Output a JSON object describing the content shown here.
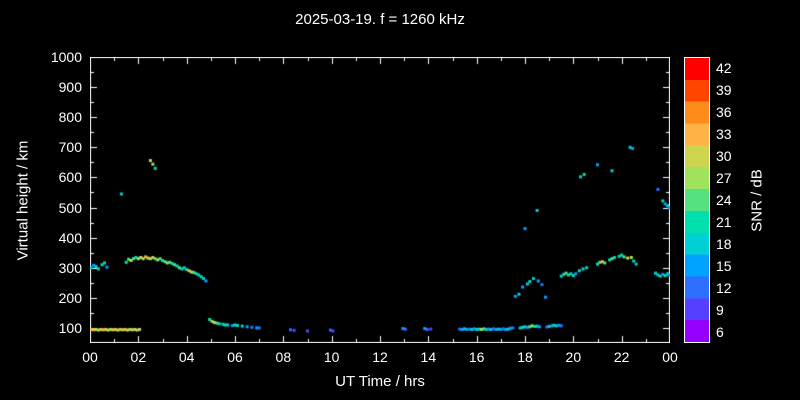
{
  "chart_data": {
    "type": "scatter",
    "title": "2025-03-19. f = 1260 kHz",
    "xlabel": "UT Time / hrs",
    "ylabel": "Virtual height / km",
    "colorbar_label": "SNR / dB",
    "background": "#000000",
    "frame_color": "#ffffff",
    "xlim": [
      0,
      24
    ],
    "ylim": [
      50,
      1000
    ],
    "xticks": {
      "values": [
        0,
        2,
        4,
        6,
        8,
        10,
        12,
        14,
        16,
        18,
        20,
        22,
        24
      ],
      "labels": [
        "00",
        "02",
        "04",
        "06",
        "08",
        "10",
        "12",
        "14",
        "16",
        "18",
        "20",
        "22",
        "00"
      ]
    },
    "yticks": [
      100,
      200,
      300,
      400,
      500,
      600,
      700,
      800,
      900,
      1000
    ],
    "colorbar": {
      "values": [
        6,
        9,
        12,
        15,
        18,
        21,
        24,
        27,
        30,
        33,
        36,
        39,
        42
      ],
      "colors": [
        "#9400ff",
        "#5540ff",
        "#2f6fff",
        "#00a2ff",
        "#00cfd6",
        "#00dfae",
        "#55e17f",
        "#9fe35c",
        "#cfd44e",
        "#ffb347",
        "#ff8c1a",
        "#ff4500",
        "#ff0000"
      ]
    },
    "points": [
      [
        0.05,
        95,
        30
      ],
      [
        0.15,
        94,
        33
      ],
      [
        0.25,
        95,
        30
      ],
      [
        0.35,
        93,
        27
      ],
      [
        0.45,
        95,
        30
      ],
      [
        0.55,
        94,
        33
      ],
      [
        0.65,
        95,
        30
      ],
      [
        0.75,
        93,
        30
      ],
      [
        0.85,
        95,
        27
      ],
      [
        0.95,
        94,
        30
      ],
      [
        1.05,
        95,
        33
      ],
      [
        1.15,
        93,
        30
      ],
      [
        1.25,
        95,
        27
      ],
      [
        1.35,
        94,
        30
      ],
      [
        1.45,
        95,
        33
      ],
      [
        1.55,
        93,
        30
      ],
      [
        1.65,
        95,
        27
      ],
      [
        1.75,
        94,
        30
      ],
      [
        1.85,
        95,
        30
      ],
      [
        1.95,
        93,
        27
      ],
      [
        2.05,
        95,
        30
      ],
      [
        0.05,
        300,
        18
      ],
      [
        0.15,
        308,
        15
      ],
      [
        0.25,
        304,
        18
      ],
      [
        0.35,
        296,
        18
      ],
      [
        0.5,
        310,
        21
      ],
      [
        0.6,
        316,
        18
      ],
      [
        0.7,
        302,
        15
      ],
      [
        1.3,
        545,
        18
      ],
      [
        1.5,
        318,
        21
      ],
      [
        1.6,
        328,
        24
      ],
      [
        1.7,
        324,
        27
      ],
      [
        1.8,
        330,
        24
      ],
      [
        1.9,
        334,
        21
      ],
      [
        2.0,
        330,
        27
      ],
      [
        2.1,
        334,
        30
      ],
      [
        2.2,
        330,
        27
      ],
      [
        2.3,
        336,
        33
      ],
      [
        2.4,
        332,
        30
      ],
      [
        2.5,
        330,
        27
      ],
      [
        2.6,
        334,
        30
      ],
      [
        2.7,
        330,
        24
      ],
      [
        2.8,
        326,
        27
      ],
      [
        2.9,
        330,
        24
      ],
      [
        3.0,
        324,
        21
      ],
      [
        3.1,
        320,
        24
      ],
      [
        3.2,
        316,
        27
      ],
      [
        3.3,
        318,
        24
      ],
      [
        3.4,
        314,
        21
      ],
      [
        3.5,
        310,
        24
      ],
      [
        3.6,
        306,
        21
      ],
      [
        3.7,
        300,
        24
      ],
      [
        3.8,
        296,
        21
      ],
      [
        3.9,
        300,
        18
      ],
      [
        4.0,
        294,
        21
      ],
      [
        4.1,
        290,
        33
      ],
      [
        4.2,
        286,
        30
      ],
      [
        4.3,
        284,
        24
      ],
      [
        4.4,
        280,
        21
      ],
      [
        4.5,
        276,
        18
      ],
      [
        4.6,
        270,
        21
      ],
      [
        4.7,
        264,
        18
      ],
      [
        4.8,
        256,
        15
      ],
      [
        2.5,
        656,
        30
      ],
      [
        2.6,
        644,
        27
      ],
      [
        2.7,
        630,
        21
      ],
      [
        4.95,
        128,
        21
      ],
      [
        5.05,
        122,
        27
      ],
      [
        5.15,
        118,
        30
      ],
      [
        5.25,
        116,
        24
      ],
      [
        5.35,
        114,
        21
      ],
      [
        5.5,
        112,
        18
      ],
      [
        5.6,
        110,
        21
      ],
      [
        5.7,
        110,
        18
      ],
      [
        5.9,
        108,
        15
      ],
      [
        6.0,
        110,
        18
      ],
      [
        6.1,
        108,
        21
      ],
      [
        6.3,
        106,
        18
      ],
      [
        6.5,
        104,
        15
      ],
      [
        6.7,
        102,
        12
      ],
      [
        6.9,
        100,
        15
      ],
      [
        7.0,
        100,
        12
      ],
      [
        8.3,
        94,
        12
      ],
      [
        8.45,
        92,
        9
      ],
      [
        9.0,
        90,
        9
      ],
      [
        9.95,
        93,
        12
      ],
      [
        10.05,
        90,
        9
      ],
      [
        12.95,
        98,
        15
      ],
      [
        13.05,
        96,
        12
      ],
      [
        13.85,
        98,
        15
      ],
      [
        13.95,
        95,
        12
      ],
      [
        14.1,
        96,
        9
      ],
      [
        15.3,
        96,
        12
      ],
      [
        15.4,
        95,
        15
      ],
      [
        15.5,
        97,
        18
      ],
      [
        15.6,
        95,
        15
      ],
      [
        15.7,
        96,
        12
      ],
      [
        15.8,
        95,
        18
      ],
      [
        15.9,
        97,
        15
      ],
      [
        16.0,
        95,
        18
      ],
      [
        16.1,
        96,
        21
      ],
      [
        16.2,
        95,
        27
      ],
      [
        16.3,
        97,
        24
      ],
      [
        16.4,
        95,
        18
      ],
      [
        16.5,
        96,
        15
      ],
      [
        16.6,
        95,
        18
      ],
      [
        16.7,
        97,
        12
      ],
      [
        16.8,
        95,
        15
      ],
      [
        16.9,
        96,
        18
      ],
      [
        17.0,
        95,
        15
      ],
      [
        17.1,
        97,
        12
      ],
      [
        17.2,
        95,
        15
      ],
      [
        17.3,
        96,
        18
      ],
      [
        17.4,
        99,
        15
      ],
      [
        17.5,
        100,
        12
      ],
      [
        17.8,
        100,
        18
      ],
      [
        17.9,
        102,
        21
      ],
      [
        18.0,
        104,
        18
      ],
      [
        18.1,
        102,
        15
      ],
      [
        18.2,
        104,
        24
      ],
      [
        18.3,
        107,
        27
      ],
      [
        18.4,
        105,
        21
      ],
      [
        18.5,
        106,
        18
      ],
      [
        18.6,
        104,
        15
      ],
      [
        18.9,
        103,
        12
      ],
      [
        19.0,
        105,
        18
      ],
      [
        19.1,
        107,
        15
      ],
      [
        19.2,
        109,
        21
      ],
      [
        19.3,
        107,
        18
      ],
      [
        19.4,
        109,
        15
      ],
      [
        19.5,
        107,
        12
      ],
      [
        17.6,
        205,
        15
      ],
      [
        17.75,
        212,
        18
      ],
      [
        17.9,
        236,
        15
      ],
      [
        18.0,
        430,
        15
      ],
      [
        18.1,
        246,
        18
      ],
      [
        18.2,
        254,
        21
      ],
      [
        18.35,
        264,
        18
      ],
      [
        18.5,
        490,
        18
      ],
      [
        18.55,
        256,
        15
      ],
      [
        18.7,
        244,
        12
      ],
      [
        18.85,
        202,
        15
      ],
      [
        19.5,
        272,
        18
      ],
      [
        19.6,
        278,
        21
      ],
      [
        19.7,
        282,
        24
      ],
      [
        19.8,
        276,
        21
      ],
      [
        19.9,
        280,
        18
      ],
      [
        20.0,
        274,
        21
      ],
      [
        20.1,
        280,
        15
      ],
      [
        20.25,
        290,
        18
      ],
      [
        20.4,
        296,
        21
      ],
      [
        20.55,
        300,
        18
      ],
      [
        20.3,
        602,
        18
      ],
      [
        20.45,
        610,
        21
      ],
      [
        21.0,
        312,
        21
      ],
      [
        21.1,
        318,
        24
      ],
      [
        21.2,
        320,
        33
      ],
      [
        21.3,
        316,
        24
      ],
      [
        21.5,
        326,
        21
      ],
      [
        21.6,
        330,
        24
      ],
      [
        21.7,
        334,
        21
      ],
      [
        21.9,
        338,
        18
      ],
      [
        22.0,
        342,
        21
      ],
      [
        22.1,
        336,
        24
      ],
      [
        22.25,
        332,
        30
      ],
      [
        22.4,
        334,
        27
      ],
      [
        22.5,
        322,
        21
      ],
      [
        22.6,
        312,
        18
      ],
      [
        21.0,
        642,
        15
      ],
      [
        21.6,
        622,
        18
      ],
      [
        22.35,
        700,
        18
      ],
      [
        22.45,
        696,
        15
      ],
      [
        23.4,
        282,
        18
      ],
      [
        23.5,
        276,
        21
      ],
      [
        23.6,
        272,
        18
      ],
      [
        23.7,
        278,
        15
      ],
      [
        23.8,
        274,
        21
      ],
      [
        23.9,
        280,
        18
      ],
      [
        23.95,
        276,
        15
      ],
      [
        23.5,
        560,
        12
      ],
      [
        23.7,
        522,
        18
      ],
      [
        23.8,
        512,
        15
      ],
      [
        23.9,
        506,
        18
      ],
      [
        23.98,
        500,
        15
      ]
    ]
  }
}
